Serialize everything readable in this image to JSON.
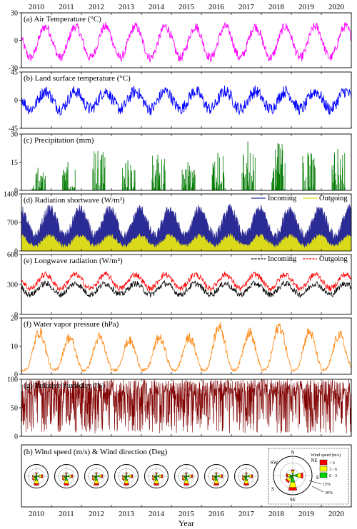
{
  "figure": {
    "xlabel": "Year",
    "years": [
      "2010",
      "2011",
      "2012",
      "2013",
      "2014",
      "2015",
      "2016",
      "2017",
      "2018",
      "2019",
      "2020"
    ]
  },
  "chart_data": [
    {
      "id": "air",
      "type": "line",
      "title": "(a) Air Temperature (°C)",
      "x_range": [
        2010,
        2021
      ],
      "ylim": [
        -30,
        30
      ],
      "yticks": [
        "-30",
        "0",
        "30"
      ],
      "series": [
        {
          "values": {
            "mean": -2,
            "amp": 17,
            "noise": 5
          },
          "color": "#ff00ff"
        }
      ]
    },
    {
      "id": "lst",
      "type": "line",
      "title": "(b) Land surface temperature (°C)",
      "x_range": [
        2010,
        2021
      ],
      "ylim": [
        -45,
        45
      ],
      "yticks": [
        "-45",
        "0",
        "45"
      ],
      "series": [
        {
          "values": {
            "mean": 0,
            "amp": 14,
            "noise": 10
          },
          "color": "#0000ff"
        }
      ]
    },
    {
      "id": "prec",
      "type": "bar",
      "title": "(c) Precipitation (mm)",
      "x_range": [
        2010,
        2021
      ],
      "ylim": [
        0,
        30
      ],
      "yticks": [
        "0",
        "15",
        "30"
      ],
      "series": [
        {
          "values": {
            "summer_max": [
              12,
              15,
              21,
              16,
              19,
              15,
              20,
              26,
              25,
              20,
              22
            ]
          },
          "color": "#007a00"
        }
      ]
    },
    {
      "id": "sw",
      "type": "area",
      "title": "(d) Radiation shortwave (W/m²)",
      "x_range": [
        2010,
        2021
      ],
      "ylim": [
        0,
        1400
      ],
      "yticks": [
        "0",
        "700",
        "1400"
      ],
      "legend": {
        "placement": "top-right"
      },
      "series": [
        {
          "name": "Incoming",
          "values": {
            "mean": 650,
            "amp": 330,
            "noise": 250
          },
          "color": "#2b2b96"
        },
        {
          "name": "Outgoing",
          "values": {
            "mean": 220,
            "amp": 130,
            "noise": 120
          },
          "color": "#dada1a"
        }
      ]
    },
    {
      "id": "lw",
      "type": "line",
      "title": "(e) Longwave radiation (W/m²)",
      "x_range": [
        2010,
        2021
      ],
      "ylim": [
        0,
        600
      ],
      "yticks": [
        "0",
        "300",
        "600"
      ],
      "legend": {
        "placement": "top-right"
      },
      "series": [
        {
          "name": "Incoming",
          "values": {
            "mean": 255,
            "amp": 55,
            "noise": 30
          },
          "color": "#000000"
        },
        {
          "name": "Outgoing",
          "values": {
            "mean": 330,
            "amp": 70,
            "noise": 30
          },
          "color": "#ff0000"
        }
      ]
    },
    {
      "id": "vp",
      "type": "line",
      "title": "(f) Water vapor pressure (hPa)",
      "x_range": [
        2010,
        2021
      ],
      "ylim": [
        0,
        20
      ],
      "yticks": [
        "0",
        "10",
        "20"
      ],
      "series": [
        {
          "values": {
            "peaks": [
              15,
              13,
              13,
              12,
              13,
              13,
              17,
              15,
              17,
              15,
              14
            ],
            "base": 1.5
          },
          "color": "#ff8c1a"
        }
      ]
    },
    {
      "id": "rh",
      "type": "line",
      "title": "(g) Relative humidity (%)",
      "x_range": [
        2010,
        2021
      ],
      "ylim": [
        0,
        100
      ],
      "yticks": [
        "0",
        "50",
        "100"
      ],
      "series": [
        {
          "values": {
            "low": 5,
            "high": 100
          },
          "color": "#800000"
        }
      ]
    },
    {
      "id": "wind",
      "type": "other",
      "title": "(h) Wind speed (m/s) & Wind direction (Deg)",
      "roses_per_year": [
        "2010",
        "2011",
        "2012",
        "2013",
        "2014",
        "2015",
        "2016",
        "2017"
      ],
      "key": {
        "title": "Wind speed (m/s)",
        "classes": [
          {
            "label": "> 6",
            "color": "#ff0000"
          },
          {
            "label": "3 - 6",
            "color": "#ffff00"
          },
          {
            "label": "0 - 3",
            "color": "#00d000"
          }
        ],
        "directions": [
          "N",
          "NE",
          "E",
          "SE",
          "S",
          "SW"
        ],
        "rings": [
          "15%",
          "30%"
        ]
      }
    }
  ]
}
